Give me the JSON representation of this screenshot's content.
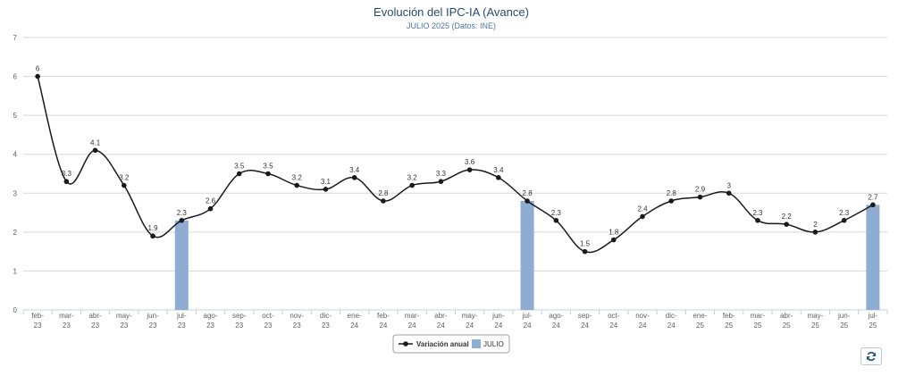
{
  "chart_data": {
    "type": "line",
    "title": "Evolución del IPC-IA (Avance)",
    "subtitle": "JULIO 2025 (Datos: INE)",
    "ylim": [
      0,
      7
    ],
    "yticks": [
      "0",
      "1",
      "2",
      "3",
      "4",
      "5",
      "6",
      "7"
    ],
    "grid": true,
    "legend_position": "bottom-center",
    "categories": [
      "feb-23",
      "mar-23",
      "abr-23",
      "may-23",
      "jun-23",
      "jul-23",
      "ago-23",
      "sep-23",
      "oct-23",
      "nov-23",
      "dic-23",
      "ene-24",
      "feb-24",
      "mar-24",
      "abr-24",
      "may-24",
      "jun-24",
      "jul-24",
      "ago-24",
      "sep-24",
      "oct-24",
      "nov-24",
      "dic-24",
      "ene-25",
      "feb-25",
      "mar-25",
      "abr-25",
      "may-25",
      "jun-25",
      "jul-25"
    ],
    "series": [
      {
        "name": "Variación anual",
        "type": "line",
        "color": "#1a1a1a",
        "values": [
          6,
          3.3,
          4.1,
          3.2,
          1.9,
          2.3,
          2.6,
          3.5,
          3.5,
          3.2,
          3.1,
          3.4,
          2.8,
          3.2,
          3.3,
          3.6,
          3.4,
          2.8,
          2.3,
          1.5,
          1.8,
          2.4,
          2.8,
          2.9,
          3,
          2.3,
          2.2,
          2,
          2.3,
          2.7
        ],
        "labels": [
          "6",
          "3.3",
          "4.1",
          "3.2",
          "1.9",
          "2.3",
          "2.6",
          "3.5",
          "3.5",
          "3.2",
          "3.1",
          "3.4",
          "2.8",
          "3.2",
          "3.3",
          "3.6",
          "3.4",
          "2.8",
          "2.3",
          "1.5",
          "1.8",
          "2.4",
          "2.8",
          "2.9",
          "3",
          "2.3",
          "2.2",
          "2",
          "2.3",
          "2.7"
        ]
      },
      {
        "name": "JULIO",
        "type": "bar",
        "color": "#8fadd3",
        "points": [
          {
            "category": "jul-23",
            "value": 2.3
          },
          {
            "category": "jul-24",
            "value": 2.8
          },
          {
            "category": "jul-25",
            "value": 2.7
          }
        ]
      }
    ]
  },
  "refresh_icon": "refresh-icon"
}
